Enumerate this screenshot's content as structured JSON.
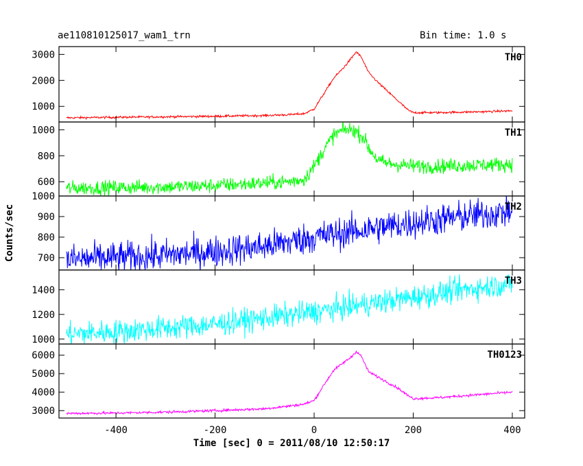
{
  "header": {
    "left_title": "ae110810125017_wam1_trn",
    "right_title": "Bin time: 1.0 s"
  },
  "chart_data": {
    "type": "line",
    "xlabel": "Time [sec] 0 = 2011/08/10 12:50:17",
    "ylabel": "Counts/sec",
    "xlim": [
      -515,
      425
    ],
    "xticks": [
      -400,
      -200,
      0,
      200,
      400
    ],
    "panels": [
      {
        "name": "TH0",
        "color": "#ff0000",
        "ylim": [
          400,
          3300
        ],
        "yticks": [
          1000,
          2000,
          3000
        ],
        "noise": 30,
        "x": [
          -500,
          -400,
          -300,
          -200,
          -100,
          -50,
          -20,
          0,
          20,
          40,
          60,
          75,
          85,
          95,
          110,
          130,
          150,
          170,
          190,
          200,
          250,
          300,
          350,
          400
        ],
        "y": [
          560,
          580,
          600,
          620,
          650,
          680,
          720,
          900,
          1500,
          2100,
          2500,
          2850,
          3100,
          2900,
          2300,
          1900,
          1550,
          1200,
          850,
          760,
          760,
          780,
          800,
          830
        ]
      },
      {
        "name": "TH1",
        "color": "#00ff00",
        "ylim": [
          490,
          1060
        ],
        "yticks": [
          600,
          800,
          1000
        ],
        "noise": 40,
        "x": [
          -500,
          -400,
          -300,
          -200,
          -100,
          -50,
          -20,
          0,
          20,
          40,
          60,
          80,
          100,
          110,
          130,
          150,
          200,
          250,
          300,
          350,
          400
        ],
        "y": [
          550,
          555,
          560,
          570,
          590,
          600,
          620,
          720,
          850,
          960,
          1000,
          1000,
          940,
          860,
          760,
          740,
          720,
          720,
          725,
          730,
          735
        ]
      },
      {
        "name": "TH2",
        "color": "#0000ff",
        "ylim": [
          640,
          1000
        ],
        "yticks": [
          700,
          800,
          900,
          1000
        ],
        "noise": 55,
        "x": [
          -500,
          -400,
          -300,
          -200,
          -100,
          0,
          100,
          200,
          300,
          400
        ],
        "y": [
          690,
          700,
          712,
          730,
          755,
          800,
          835,
          870,
          900,
          925
        ]
      },
      {
        "name": "TH3",
        "color": "#00ffff",
        "ylim": [
          960,
          1560
        ],
        "yticks": [
          1000,
          1200,
          1400
        ],
        "noise": 70,
        "x": [
          -500,
          -400,
          -300,
          -200,
          -100,
          0,
          100,
          200,
          300,
          400
        ],
        "y": [
          1040,
          1060,
          1090,
          1120,
          1170,
          1220,
          1280,
          1340,
          1400,
          1450
        ]
      },
      {
        "name": "TH0123",
        "color": "#ff00ff",
        "ylim": [
          2600,
          6600
        ],
        "yticks": [
          3000,
          4000,
          5000,
          6000
        ],
        "noise": 50,
        "x": [
          -500,
          -400,
          -300,
          -200,
          -100,
          -50,
          -20,
          0,
          20,
          40,
          60,
          75,
          85,
          95,
          110,
          130,
          150,
          170,
          190,
          200,
          250,
          300,
          350,
          400
        ],
        "y": [
          2850,
          2870,
          2920,
          3000,
          3100,
          3250,
          3350,
          3550,
          4400,
          5200,
          5600,
          5900,
          6200,
          5950,
          5100,
          4800,
          4500,
          4200,
          3800,
          3650,
          3700,
          3800,
          3900,
          4000
        ]
      }
    ]
  }
}
